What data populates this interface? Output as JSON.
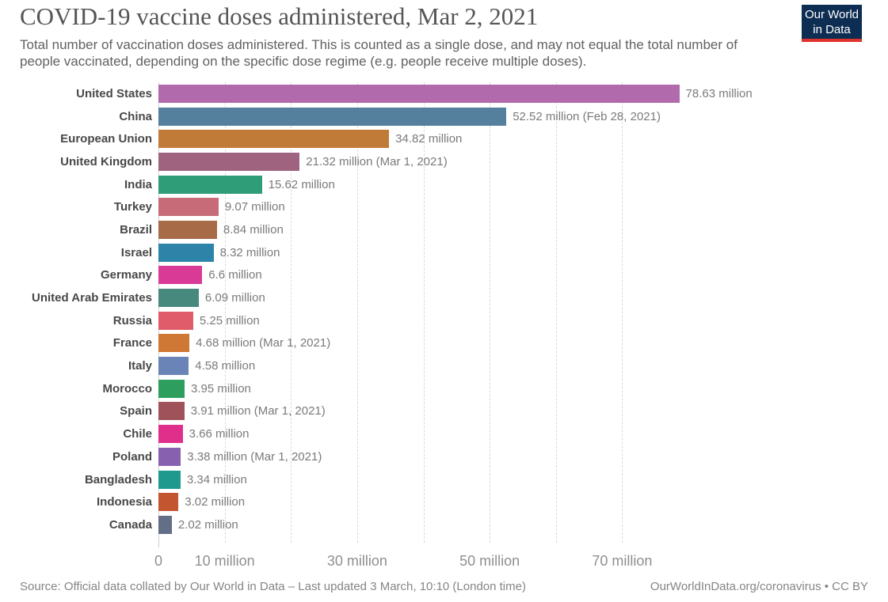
{
  "header": {
    "title": "COVID-19 vaccine doses administered, Mar 2, 2021",
    "subtitle": "Total number of vaccination doses administered. This is counted as a single dose, and may not equal the total number of people vaccinated, depending on the specific dose regime (e.g. people receive multiple doses).",
    "logo": {
      "line1": "Our World",
      "line2": "in Data",
      "bg_color": "#0d2d52",
      "accent_color": "#e0332c"
    }
  },
  "chart_data": {
    "type": "bar",
    "orientation": "horizontal",
    "title": "COVID-19 vaccine doses administered, Mar 2, 2021",
    "xlabel": "",
    "ylabel": "",
    "unit": "million doses",
    "xlim": [
      0,
      80
    ],
    "grid": "dashed-vertical",
    "gridlines_million": [
      10,
      20,
      30,
      40,
      50,
      60,
      70
    ],
    "x_ticks": [
      {
        "value": 0,
        "label": "0"
      },
      {
        "value": 10,
        "label": "10 million"
      },
      {
        "value": 30,
        "label": "30 million"
      },
      {
        "value": 50,
        "label": "50 million"
      },
      {
        "value": 70,
        "label": "70 million"
      }
    ],
    "bars": [
      {
        "label": "United States",
        "value": 78.63,
        "value_label": "78.63 million",
        "color": "#b16bac"
      },
      {
        "label": "China",
        "value": 52.52,
        "value_label": "52.52 million (Feb 28, 2021)",
        "color": "#54809e"
      },
      {
        "label": "European Union",
        "value": 34.82,
        "value_label": "34.82 million",
        "color": "#c17b38"
      },
      {
        "label": "United Kingdom",
        "value": 21.32,
        "value_label": "21.32 million (Mar 1, 2021)",
        "color": "#9f6380"
      },
      {
        "label": "India",
        "value": 15.62,
        "value_label": "15.62 million",
        "color": "#2e9d78"
      },
      {
        "label": "Turkey",
        "value": 9.07,
        "value_label": "9.07 million",
        "color": "#c76b79"
      },
      {
        "label": "Brazil",
        "value": 8.84,
        "value_label": "8.84 million",
        "color": "#a76b48"
      },
      {
        "label": "Israel",
        "value": 8.32,
        "value_label": "8.32 million",
        "color": "#2d84a8"
      },
      {
        "label": "Germany",
        "value": 6.6,
        "value_label": "6.6 million",
        "color": "#d93a96"
      },
      {
        "label": "United Arab Emirates",
        "value": 6.09,
        "value_label": "6.09 million",
        "color": "#48897d"
      },
      {
        "label": "Russia",
        "value": 5.25,
        "value_label": "5.25 million",
        "color": "#e05c6a"
      },
      {
        "label": "France",
        "value": 4.68,
        "value_label": "4.68 million (Mar 1, 2021)",
        "color": "#cf7835"
      },
      {
        "label": "Italy",
        "value": 4.58,
        "value_label": "4.58 million",
        "color": "#6b84b8"
      },
      {
        "label": "Morocco",
        "value": 3.95,
        "value_label": "3.95 million",
        "color": "#2e9e5f"
      },
      {
        "label": "Spain",
        "value": 3.91,
        "value_label": "3.91 million (Mar 1, 2021)",
        "color": "#a0525a"
      },
      {
        "label": "Chile",
        "value": 3.66,
        "value_label": "3.66 million",
        "color": "#df2f8a"
      },
      {
        "label": "Poland",
        "value": 3.38,
        "value_label": "3.38 million (Mar 1, 2021)",
        "color": "#8860b0"
      },
      {
        "label": "Bangladesh",
        "value": 3.34,
        "value_label": "3.34 million",
        "color": "#1f998e"
      },
      {
        "label": "Indonesia",
        "value": 3.02,
        "value_label": "3.02 million",
        "color": "#c35530"
      },
      {
        "label": "Canada",
        "value": 2.02,
        "value_label": "2.02 million",
        "color": "#636f87"
      }
    ]
  },
  "footer": {
    "source": "Source: Official data collated by Our World in Data – Last updated 3 March, 10:10 (London time)",
    "link": "OurWorldInData.org/coronavirus • CC BY"
  }
}
